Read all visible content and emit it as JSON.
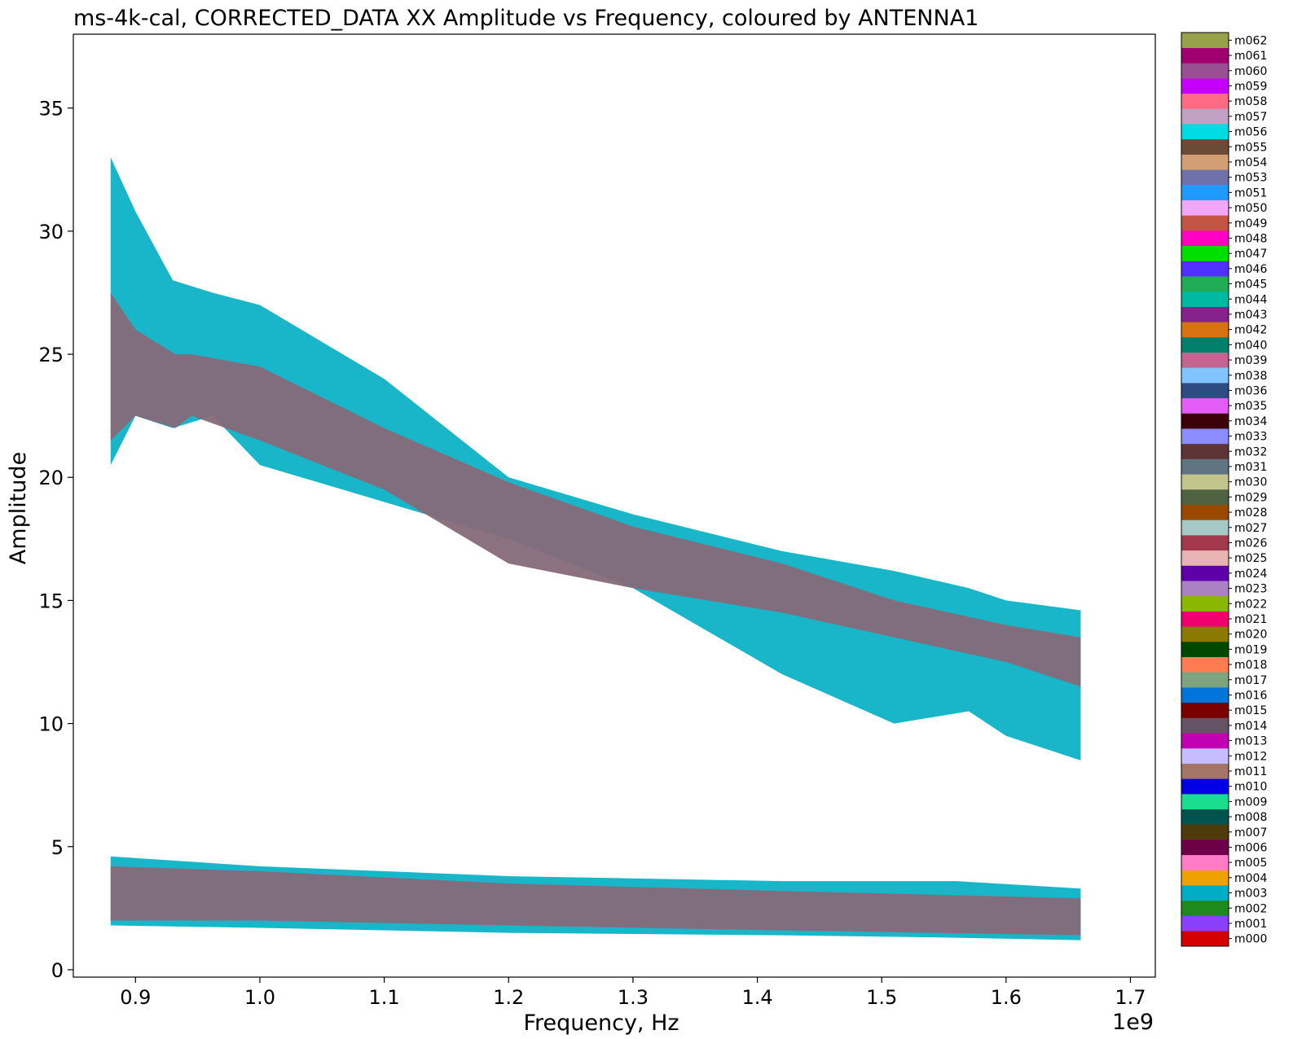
{
  "chart_data": {
    "type": "scatter",
    "title": "ms-4k-cal, CORRECTED_DATA XX Amplitude vs Frequency, coloured by ANTENNA1",
    "xlabel": "Frequency, Hz",
    "ylabel": "Amplitude",
    "x_offset_label": "1e9",
    "xlim": [
      0.85,
      1.72
    ],
    "ylim": [
      -0.3,
      38
    ],
    "xticks": [
      0.9,
      1.0,
      1.1,
      1.2,
      1.3,
      1.4,
      1.5,
      1.6,
      1.7
    ],
    "xtick_labels": [
      "0.9",
      "1.0",
      "1.1",
      "1.2",
      "1.3",
      "1.4",
      "1.5",
      "1.6",
      "1.7"
    ],
    "yticks": [
      0,
      5,
      10,
      15,
      20,
      25,
      30,
      35
    ],
    "ytick_labels": [
      "0",
      "5",
      "10",
      "15",
      "20",
      "25",
      "30",
      "35"
    ],
    "grid": false,
    "legend_placement": "right colorbar",
    "series": [
      {
        "name": "m000",
        "color": "#d40000"
      },
      {
        "name": "m001",
        "color": "#8a3ffc"
      },
      {
        "name": "m002",
        "color": "#1e8a1e"
      },
      {
        "name": "m003",
        "color": "#00aec3"
      },
      {
        "name": "m004",
        "color": "#f0a000"
      },
      {
        "name": "m005",
        "color": "#ff7ac7"
      },
      {
        "name": "m006",
        "color": "#6e0047"
      },
      {
        "name": "m007",
        "color": "#4f3a0a"
      },
      {
        "name": "m008",
        "color": "#00544f"
      },
      {
        "name": "m009",
        "color": "#19dd8c"
      },
      {
        "name": "m010",
        "color": "#0000e6"
      },
      {
        "name": "m011",
        "color": "#a37566"
      },
      {
        "name": "m012",
        "color": "#c6bdff"
      },
      {
        "name": "m013",
        "color": "#c100b3"
      },
      {
        "name": "m014",
        "color": "#665265"
      },
      {
        "name": "m015",
        "color": "#7a0000"
      },
      {
        "name": "m016",
        "color": "#0074d9"
      },
      {
        "name": "m017",
        "color": "#7ea37f"
      },
      {
        "name": "m018",
        "color": "#ff7b52"
      },
      {
        "name": "m019",
        "color": "#004800"
      },
      {
        "name": "m020",
        "color": "#8c7a00"
      },
      {
        "name": "m021",
        "color": "#f0006e"
      },
      {
        "name": "m022",
        "color": "#8ab800"
      },
      {
        "name": "m023",
        "color": "#aa82c3"
      },
      {
        "name": "m024",
        "color": "#5d00aa"
      },
      {
        "name": "m025",
        "color": "#e7b3b3"
      },
      {
        "name": "m026",
        "color": "#a1384b"
      },
      {
        "name": "m027",
        "color": "#a5c9c5"
      },
      {
        "name": "m028",
        "color": "#9a4a00"
      },
      {
        "name": "m029",
        "color": "#4f6342"
      },
      {
        "name": "m030",
        "color": "#c2c48c"
      },
      {
        "name": "m031",
        "color": "#607581"
      },
      {
        "name": "m032",
        "color": "#5d3537"
      },
      {
        "name": "m033",
        "color": "#8b8cff"
      },
      {
        "name": "m034",
        "color": "#3b0008"
      },
      {
        "name": "m035",
        "color": "#e35cfa"
      },
      {
        "name": "m036",
        "color": "#2f4c82"
      },
      {
        "name": "m038",
        "color": "#82c4ff"
      },
      {
        "name": "m039",
        "color": "#c46591"
      },
      {
        "name": "m040",
        "color": "#00806b"
      },
      {
        "name": "m042",
        "color": "#d87211"
      },
      {
        "name": "m043",
        "color": "#85238b"
      },
      {
        "name": "m044",
        "color": "#00b9a1"
      },
      {
        "name": "m045",
        "color": "#21ad57"
      },
      {
        "name": "m046",
        "color": "#5030ff"
      },
      {
        "name": "m047",
        "color": "#00e000"
      },
      {
        "name": "m048",
        "color": "#ff00c4"
      },
      {
        "name": "m049",
        "color": "#c45443"
      },
      {
        "name": "m050",
        "color": "#f2a6f7"
      },
      {
        "name": "m051",
        "color": "#1f9bff"
      },
      {
        "name": "m053",
        "color": "#6e72ab"
      },
      {
        "name": "m054",
        "color": "#d19f73"
      },
      {
        "name": "m055",
        "color": "#6b4b35"
      },
      {
        "name": "m056",
        "color": "#00dce3"
      },
      {
        "name": "m057",
        "color": "#c2a2c4"
      },
      {
        "name": "m058",
        "color": "#ff6b85"
      },
      {
        "name": "m059",
        "color": "#c500ff"
      },
      {
        "name": "m060",
        "color": "#9a4f93"
      },
      {
        "name": "m061",
        "color": "#a0006f"
      },
      {
        "name": "m062",
        "color": "#96a14a"
      }
    ],
    "bands": [
      {
        "name": "upper-cyan",
        "color": "#00aec3",
        "points": [
          {
            "x": 0.88,
            "lo": 20.5,
            "hi": 33.0
          },
          {
            "x": 0.9,
            "lo": 22.5,
            "hi": 30.8
          },
          {
            "x": 0.93,
            "lo": 22.0,
            "hi": 28.0
          },
          {
            "x": 0.962,
            "lo": 22.5,
            "hi": 27.5
          },
          {
            "x": 1.0,
            "lo": 20.5,
            "hi": 27.0
          },
          {
            "x": 1.1,
            "lo": 19.0,
            "hi": 24.0
          },
          {
            "x": 1.2,
            "lo": 17.5,
            "hi": 20.0
          },
          {
            "x": 1.3,
            "lo": 15.5,
            "hi": 18.5
          },
          {
            "x": 1.42,
            "lo": 12.0,
            "hi": 17.0
          },
          {
            "x": 1.51,
            "lo": 10.0,
            "hi": 16.2
          },
          {
            "x": 1.57,
            "lo": 10.5,
            "hi": 15.5
          },
          {
            "x": 1.6,
            "lo": 9.5,
            "hi": 15.0
          },
          {
            "x": 1.66,
            "lo": 8.5,
            "hi": 14.6
          }
        ]
      },
      {
        "name": "upper-mauve",
        "color": "#86697a",
        "points": [
          {
            "x": 0.88,
            "lo": 21.5,
            "hi": 27.5
          },
          {
            "x": 0.9,
            "lo": 22.5,
            "hi": 26.0
          },
          {
            "x": 0.932,
            "lo": 22.0,
            "hi": 25.0
          },
          {
            "x": 0.945,
            "lo": 22.5,
            "hi": 25.0
          },
          {
            "x": 1.0,
            "lo": 21.5,
            "hi": 24.5
          },
          {
            "x": 1.1,
            "lo": 19.5,
            "hi": 22.0
          },
          {
            "x": 1.2,
            "lo": 16.5,
            "hi": 19.8
          },
          {
            "x": 1.3,
            "lo": 15.5,
            "hi": 18.0
          },
          {
            "x": 1.42,
            "lo": 14.5,
            "hi": 16.5
          },
          {
            "x": 1.51,
            "lo": 13.5,
            "hi": 15.0
          },
          {
            "x": 1.6,
            "lo": 12.5,
            "hi": 14.0
          },
          {
            "x": 1.66,
            "lo": 11.5,
            "hi": 13.5
          }
        ]
      },
      {
        "name": "lower-cyan",
        "color": "#00aec3",
        "points": [
          {
            "x": 0.88,
            "lo": 1.8,
            "hi": 4.6
          },
          {
            "x": 1.0,
            "lo": 1.7,
            "hi": 4.2
          },
          {
            "x": 1.2,
            "lo": 1.5,
            "hi": 3.8
          },
          {
            "x": 1.42,
            "lo": 1.4,
            "hi": 3.6
          },
          {
            "x": 1.56,
            "lo": 1.3,
            "hi": 3.6
          },
          {
            "x": 1.66,
            "lo": 1.2,
            "hi": 3.3
          }
        ]
      },
      {
        "name": "lower-mauve",
        "color": "#86697a",
        "points": [
          {
            "x": 0.88,
            "lo": 2.0,
            "hi": 4.2
          },
          {
            "x": 1.0,
            "lo": 2.0,
            "hi": 4.0
          },
          {
            "x": 1.2,
            "lo": 1.8,
            "hi": 3.5
          },
          {
            "x": 1.42,
            "lo": 1.6,
            "hi": 3.2
          },
          {
            "x": 1.66,
            "lo": 1.4,
            "hi": 2.9
          }
        ]
      }
    ]
  }
}
